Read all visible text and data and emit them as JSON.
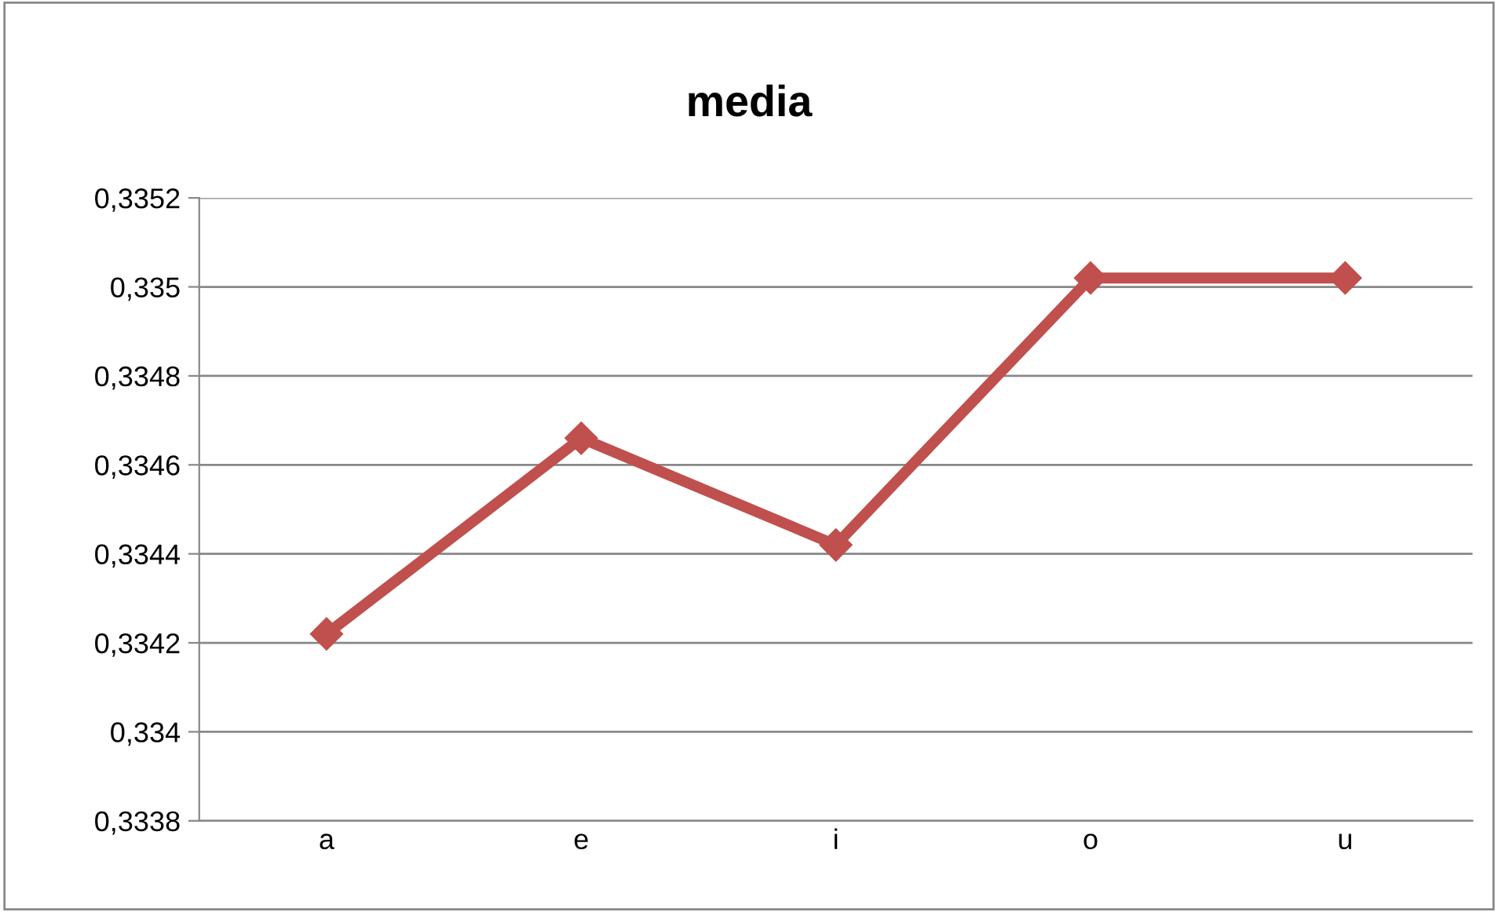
{
  "chart_data": {
    "type": "line",
    "title": "media",
    "categories": [
      "a",
      "e",
      "i",
      "o",
      "u"
    ],
    "series": [
      {
        "color": "#c0504d",
        "values": [
          0.33422,
          0.33466,
          0.33442,
          0.33502,
          0.33502
        ]
      }
    ],
    "ylim": [
      0.3338,
      0.3352
    ],
    "yticks": [
      {
        "value": 0.3338,
        "label": "0,3338"
      },
      {
        "value": 0.334,
        "label": "0,334"
      },
      {
        "value": 0.3342,
        "label": "0,3342"
      },
      {
        "value": 0.3344,
        "label": "0,3344"
      },
      {
        "value": 0.3346,
        "label": "0,3346"
      },
      {
        "value": 0.3348,
        "label": "0,3348"
      },
      {
        "value": 0.335,
        "label": "0,335"
      },
      {
        "value": 0.3352,
        "label": "0,3352"
      }
    ],
    "grid": "y",
    "marker": "diamond",
    "line_style": "solid"
  }
}
